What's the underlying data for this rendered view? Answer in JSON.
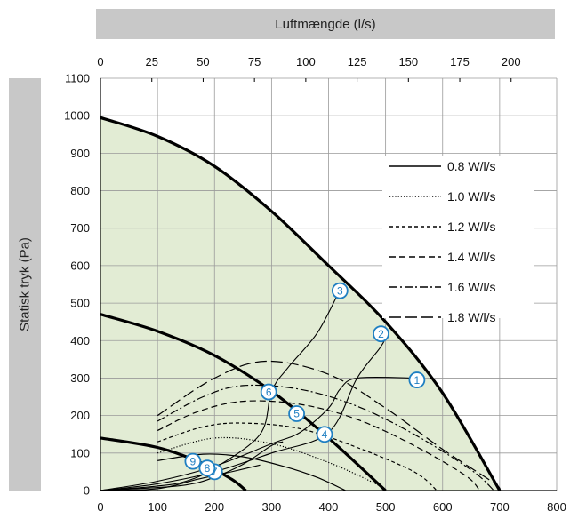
{
  "chart_data": {
    "type": "line",
    "title": "",
    "xlabel": "",
    "ylabel": "Statisk tryk (Pa)",
    "top_axis_label": "Luftmængde (l/s)",
    "xlim": [
      0,
      800
    ],
    "ylim": [
      0,
      1100
    ],
    "x_ticks": [
      0,
      100,
      200,
      300,
      400,
      500,
      600,
      700,
      800
    ],
    "y_ticks": [
      0,
      100,
      200,
      300,
      400,
      500,
      600,
      700,
      800,
      900,
      1000,
      1100
    ],
    "top_ticks": [
      0,
      25,
      50,
      75,
      100,
      125,
      150,
      175,
      200
    ],
    "top_xlim": [
      0,
      222.2
    ],
    "grid": true,
    "legend_position": "upper-right",
    "colors": {
      "fill": "#e2ecd4",
      "line": "#000000",
      "marker": "#1f7fc2",
      "band": "#c8c8c8"
    },
    "envelope": [
      [
        0,
        995
      ],
      [
        100,
        945
      ],
      [
        200,
        865
      ],
      [
        300,
        745
      ],
      [
        400,
        600
      ],
      [
        500,
        450
      ],
      [
        600,
        260
      ],
      [
        700,
        0
      ]
    ],
    "fan_curves": [
      {
        "label": "max",
        "points": [
          [
            0,
            995
          ],
          [
            100,
            945
          ],
          [
            200,
            865
          ],
          [
            300,
            745
          ],
          [
            400,
            600
          ],
          [
            500,
            450
          ],
          [
            600,
            260
          ],
          [
            700,
            0
          ]
        ]
      },
      {
        "label": "mid",
        "points": [
          [
            0,
            470
          ],
          [
            100,
            425
          ],
          [
            200,
            360
          ],
          [
            300,
            265
          ],
          [
            400,
            140
          ],
          [
            500,
            0
          ]
        ]
      },
      {
        "label": "min",
        "points": [
          [
            0,
            140
          ],
          [
            100,
            115
          ],
          [
            175,
            75
          ],
          [
            230,
            30
          ],
          [
            255,
            0
          ]
        ]
      }
    ],
    "series": [
      {
        "name": "0.8 W/l/s",
        "dash": "solid",
        "points": [
          [
            100,
            80
          ],
          [
            180,
            97
          ],
          [
            250,
            90
          ],
          [
            320,
            65
          ],
          [
            380,
            35
          ],
          [
            430,
            0
          ]
        ]
      },
      {
        "name": "1.0 W/l/s",
        "dash": "dotted",
        "points": [
          [
            100,
            100
          ],
          [
            200,
            140
          ],
          [
            300,
            125
          ],
          [
            400,
            75
          ],
          [
            480,
            20
          ],
          [
            500,
            0
          ]
        ]
      },
      {
        "name": "1.2 W/l/s",
        "dash": "short",
        "points": [
          [
            100,
            130
          ],
          [
            180,
            170
          ],
          [
            250,
            180
          ],
          [
            350,
            165
          ],
          [
            450,
            115
          ],
          [
            550,
            50
          ],
          [
            590,
            0
          ]
        ]
      },
      {
        "name": "1.4 W/l/s",
        "dash": "medium",
        "points": [
          [
            100,
            160
          ],
          [
            170,
            210
          ],
          [
            250,
            238
          ],
          [
            350,
            230
          ],
          [
            450,
            190
          ],
          [
            550,
            120
          ],
          [
            640,
            40
          ],
          [
            665,
            0
          ]
        ]
      },
      {
        "name": "1.6 W/l/s",
        "dash": "dashdot",
        "points": [
          [
            100,
            185
          ],
          [
            180,
            250
          ],
          [
            250,
            280
          ],
          [
            350,
            270
          ],
          [
            450,
            225
          ],
          [
            550,
            150
          ],
          [
            650,
            55
          ],
          [
            690,
            0
          ]
        ]
      },
      {
        "name": "1.8 W/l/s",
        "dash": "long",
        "points": [
          [
            100,
            200
          ],
          [
            200,
            300
          ],
          [
            290,
            345
          ],
          [
            400,
            310
          ],
          [
            500,
            220
          ],
          [
            600,
            110
          ],
          [
            690,
            20
          ],
          [
            700,
            0
          ]
        ]
      }
    ],
    "system_curves": [
      {
        "points": [
          [
            0,
            0
          ],
          [
            100,
            25
          ],
          [
            200,
            65
          ],
          [
            300,
            125
          ],
          [
            350,
            155
          ],
          [
            400,
            220
          ],
          [
            420,
            270
          ],
          [
            450,
            300
          ],
          [
            550,
            300
          ],
          [
            560,
            298
          ]
        ]
      },
      {
        "points": [
          [
            0,
            0
          ],
          [
            100,
            18
          ],
          [
            200,
            50
          ],
          [
            300,
            100
          ],
          [
            400,
            155
          ],
          [
            450,
            300
          ],
          [
            490,
            380
          ],
          [
            505,
            420
          ]
        ]
      },
      {
        "points": [
          [
            0,
            0
          ],
          [
            100,
            12
          ],
          [
            150,
            25
          ],
          [
            200,
            60
          ],
          [
            280,
            150
          ],
          [
            300,
            265
          ],
          [
            330,
            330
          ],
          [
            380,
            420
          ],
          [
            420,
            535
          ]
        ]
      },
      {
        "points": [
          [
            0,
            0
          ],
          [
            100,
            8
          ],
          [
            150,
            15
          ],
          [
            190,
            30
          ],
          [
            250,
            70
          ],
          [
            300,
            120
          ],
          [
            320,
            130
          ]
        ]
      },
      {
        "points": [
          [
            0,
            0
          ],
          [
            100,
            5
          ],
          [
            170,
            30
          ],
          [
            230,
            50
          ],
          [
            280,
            68
          ]
        ]
      }
    ],
    "markers": [
      {
        "label": "1",
        "x": 555,
        "y": 295
      },
      {
        "label": "2",
        "x": 492,
        "y": 418
      },
      {
        "label": "3",
        "x": 420,
        "y": 533
      },
      {
        "label": "4",
        "x": 393,
        "y": 150
      },
      {
        "label": "5",
        "x": 344,
        "y": 205
      },
      {
        "label": "6",
        "x": 295,
        "y": 263
      },
      {
        "label": "7",
        "x": 200,
        "y": 50
      },
      {
        "label": "8",
        "x": 187,
        "y": 60
      },
      {
        "label": "9",
        "x": 162,
        "y": 78
      }
    ]
  }
}
